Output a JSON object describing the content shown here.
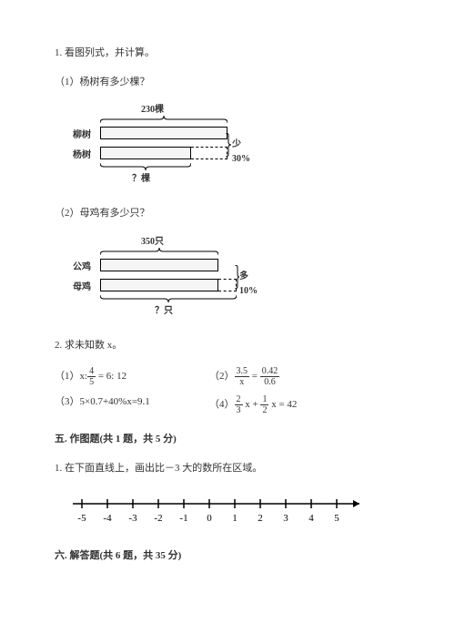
{
  "q1": {
    "title": "1. 看图列式，并计算。",
    "part1": {
      "label": "（1）杨树有多少棵？",
      "top_value": "230棵",
      "row1_label": "柳树",
      "row2_label": "杨树",
      "percent_label": "少30%",
      "bottom_label": "？棵"
    },
    "part2": {
      "label": "（2）母鸡有多少只？",
      "top_value": "350只",
      "row1_label": "公鸡",
      "row2_label": "母鸡",
      "percent_label": "多10%",
      "bottom_label": "？只"
    }
  },
  "q2": {
    "title": "2. 求未知数 x。",
    "eq1_prefix": "（1）x:",
    "eq1_num": "4",
    "eq1_den": "5",
    "eq1_suffix": " = 6: 12",
    "eq2_prefix": "（2）",
    "eq2_a_num": "3.5",
    "eq2_a_den": "x",
    "eq2_mid": " = ",
    "eq2_b_num": "0.42",
    "eq2_b_den": "0.6",
    "eq3": "（3）5×0.7+40%x=9.1",
    "eq4_prefix": "（4）",
    "eq4_a_num": "2",
    "eq4_a_den": "3",
    "eq4_mid1": " x + ",
    "eq4_b_num": "1",
    "eq4_b_den": "2",
    "eq4_suffix": " x = 42"
  },
  "s5": {
    "heading": "五. 作图题(共 1 题，共 5 分)",
    "q1": "1. 在下面直线上，画出比－3 大的数所在区域。",
    "ticks": [
      "-5",
      "-4",
      "-3",
      "-2",
      "-1",
      "0",
      "1",
      "2",
      "3",
      "4",
      "5"
    ]
  },
  "s6": {
    "heading": "六. 解答题(共 6 题，共 35 分)"
  }
}
